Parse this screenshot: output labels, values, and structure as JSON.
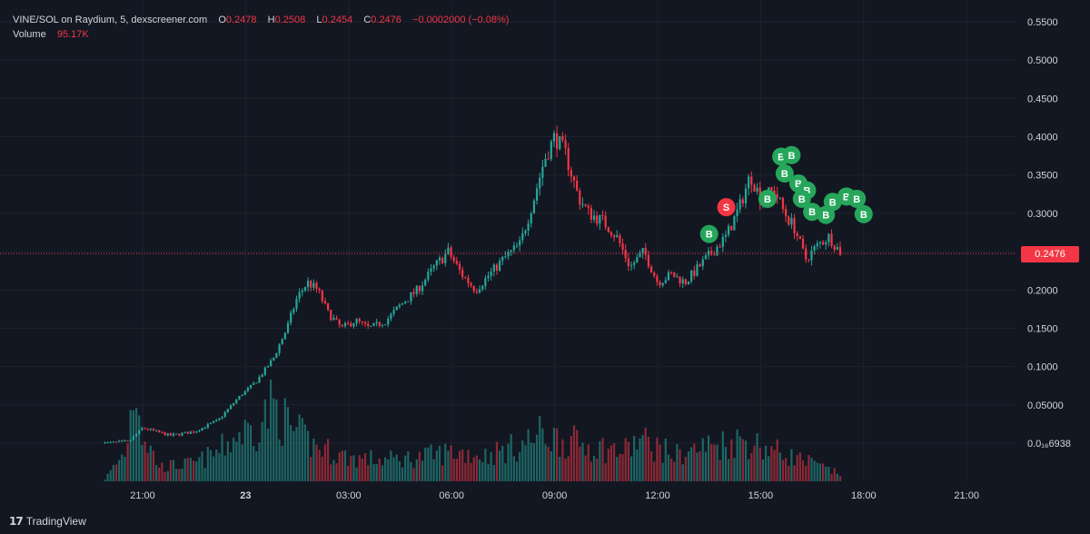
{
  "legend": {
    "symbol": "VINE/SOL on Raydium, 5, dexscreener.com",
    "o_label": "O",
    "o_value": "0.2478",
    "h_label": "H",
    "h_value": "0.2508",
    "l_label": "L",
    "l_value": "0.2454",
    "c_label": "C",
    "c_value": "0.2476",
    "change": "−0.0002000 (−0.08%)",
    "volume_label": "Volume",
    "volume_value": "95.17K"
  },
  "brand": {
    "logo": "17",
    "name": "TradingView"
  },
  "current_price_label": "0.2476",
  "colors": {
    "background": "#131722",
    "up": "#26a69a",
    "down": "#f23645",
    "grid": "#1e222d",
    "buy_marker": "#26a65b",
    "sell_marker": "#f23645"
  },
  "chart_data": {
    "type": "candlestick",
    "title": "VINE/SOL on Raydium, 5, dexscreener.com",
    "x_ticks": [
      "21:00",
      "23",
      "03:00",
      "06:00",
      "09:00",
      "12:00",
      "15:00",
      "18:00",
      "21:00"
    ],
    "x_tick_hours": [
      21,
      24,
      27,
      30,
      33,
      36,
      39,
      42,
      45
    ],
    "y_ticks": [
      {
        "label": "0.5500",
        "value": 0.55
      },
      {
        "label": "0.5000",
        "value": 0.5
      },
      {
        "label": "0.4500",
        "value": 0.45
      },
      {
        "label": "0.4000",
        "value": 0.4
      },
      {
        "label": "0.3500",
        "value": 0.35
      },
      {
        "label": "0.3000",
        "value": 0.3
      },
      {
        "label": "0.2500",
        "value": 0.25
      },
      {
        "label": "0.2000",
        "value": 0.2
      },
      {
        "label": "0.1500",
        "value": 0.15
      },
      {
        "label": "0.1000",
        "value": 0.1
      },
      {
        "label": "0.05000",
        "value": 0.05
      },
      {
        "label": "0.0₁₆6938",
        "value": 0.0
      }
    ],
    "ylim": [
      0.0,
      0.55
    ],
    "grid": true,
    "current_price": 0.2476,
    "price_path": [
      [
        19.9,
        0.0
      ],
      [
        20.6,
        0.002
      ],
      [
        21.0,
        0.02
      ],
      [
        21.8,
        0.01
      ],
      [
        22.5,
        0.015
      ],
      [
        23.2,
        0.03
      ],
      [
        23.8,
        0.06
      ],
      [
        24.3,
        0.08
      ],
      [
        24.8,
        0.11
      ],
      [
        25.2,
        0.15
      ],
      [
        25.5,
        0.19
      ],
      [
        25.8,
        0.21
      ],
      [
        26.1,
        0.2
      ],
      [
        26.4,
        0.17
      ],
      [
        26.8,
        0.15
      ],
      [
        27.2,
        0.16
      ],
      [
        27.6,
        0.15
      ],
      [
        28.1,
        0.16
      ],
      [
        28.5,
        0.18
      ],
      [
        29.0,
        0.2
      ],
      [
        29.5,
        0.23
      ],
      [
        29.9,
        0.25
      ],
      [
        30.3,
        0.22
      ],
      [
        30.7,
        0.2
      ],
      [
        31.1,
        0.22
      ],
      [
        31.5,
        0.24
      ],
      [
        32.0,
        0.26
      ],
      [
        32.4,
        0.32
      ],
      [
        32.7,
        0.37
      ],
      [
        33.0,
        0.4
      ],
      [
        33.3,
        0.38
      ],
      [
        33.7,
        0.32
      ],
      [
        34.0,
        0.3
      ],
      [
        34.4,
        0.29
      ],
      [
        34.8,
        0.27
      ],
      [
        35.2,
        0.23
      ],
      [
        35.6,
        0.25
      ],
      [
        36.0,
        0.21
      ],
      [
        36.4,
        0.22
      ],
      [
        36.8,
        0.21
      ],
      [
        37.2,
        0.23
      ],
      [
        37.6,
        0.25
      ],
      [
        38.0,
        0.27
      ],
      [
        38.4,
        0.31
      ],
      [
        38.7,
        0.35
      ],
      [
        39.0,
        0.32
      ],
      [
        39.4,
        0.33
      ],
      [
        39.7,
        0.3
      ],
      [
        40.0,
        0.28
      ],
      [
        40.3,
        0.24
      ],
      [
        40.7,
        0.26
      ],
      [
        41.0,
        0.27
      ],
      [
        41.3,
        0.25
      ],
      [
        41.4,
        0.2476
      ]
    ],
    "volume_profile": [
      [
        19.9,
        0.02
      ],
      [
        20.5,
        0.25
      ],
      [
        20.8,
        0.9
      ],
      [
        21.0,
        0.4
      ],
      [
        21.5,
        0.12
      ],
      [
        22.5,
        0.15
      ],
      [
        23.2,
        0.25
      ],
      [
        23.8,
        0.4
      ],
      [
        24.3,
        0.45
      ],
      [
        24.8,
        0.65
      ],
      [
        25.3,
        0.45
      ],
      [
        26.0,
        0.3
      ],
      [
        27.0,
        0.2
      ],
      [
        28.0,
        0.18
      ],
      [
        29.0,
        0.2
      ],
      [
        30.0,
        0.25
      ],
      [
        31.0,
        0.22
      ],
      [
        32.0,
        0.3
      ],
      [
        32.6,
        0.4
      ],
      [
        33.2,
        0.35
      ],
      [
        34.0,
        0.3
      ],
      [
        35.0,
        0.25
      ],
      [
        35.5,
        0.35
      ],
      [
        36.5,
        0.22
      ],
      [
        37.5,
        0.3
      ],
      [
        38.5,
        0.35
      ],
      [
        39.5,
        0.25
      ],
      [
        40.5,
        0.15
      ],
      [
        41.4,
        0.05
      ]
    ],
    "markers": [
      {
        "label": "B",
        "side": "buy",
        "hour": 37.5,
        "price": 0.273
      },
      {
        "label": "S",
        "side": "sell",
        "hour": 38.0,
        "price": 0.308
      },
      {
        "label": "B",
        "side": "buy",
        "hour": 39.2,
        "price": 0.319
      },
      {
        "label": "B",
        "side": "buy",
        "hour": 39.6,
        "price": 0.374
      },
      {
        "label": "B",
        "side": "buy",
        "hour": 39.9,
        "price": 0.376
      },
      {
        "label": "B",
        "side": "buy",
        "hour": 39.7,
        "price": 0.352
      },
      {
        "label": "B",
        "side": "buy",
        "hour": 40.1,
        "price": 0.339
      },
      {
        "label": "B",
        "side": "buy",
        "hour": 40.35,
        "price": 0.33
      },
      {
        "label": "B",
        "side": "buy",
        "hour": 40.2,
        "price": 0.319
      },
      {
        "label": "B",
        "side": "buy",
        "hour": 40.5,
        "price": 0.302
      },
      {
        "label": "B",
        "side": "buy",
        "hour": 40.9,
        "price": 0.298
      },
      {
        "label": "B",
        "side": "buy",
        "hour": 41.1,
        "price": 0.315
      },
      {
        "label": "B",
        "side": "buy",
        "hour": 41.5,
        "price": 0.322
      },
      {
        "label": "B",
        "side": "buy",
        "hour": 41.8,
        "price": 0.319
      },
      {
        "label": "B",
        "side": "buy",
        "hour": 42.0,
        "price": 0.299
      }
    ]
  }
}
